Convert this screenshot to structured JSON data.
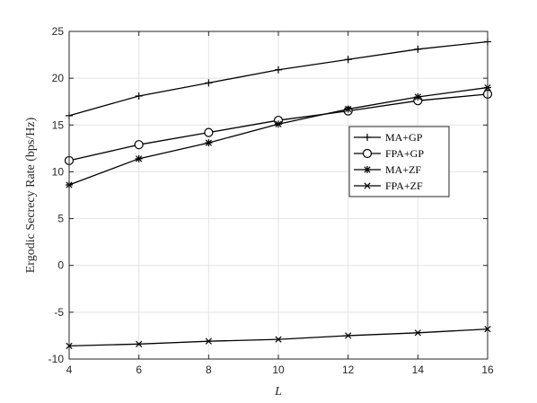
{
  "chart_data": {
    "type": "line",
    "title": "",
    "xlabel": "L",
    "ylabel": "Ergodic Secrecy Rate  (bps/Hz)",
    "xlim": [
      4,
      16
    ],
    "ylim": [
      -10,
      25
    ],
    "xticks": [
      4,
      6,
      8,
      10,
      12,
      14,
      16
    ],
    "yticks": [
      -10,
      -5,
      0,
      5,
      10,
      15,
      20,
      25
    ],
    "grid": true,
    "legend_position": "center-right",
    "x": [
      4,
      6,
      8,
      10,
      12,
      14,
      16
    ],
    "series": [
      {
        "name": "MA+GP",
        "marker": "plus",
        "color": "#000000",
        "values": [
          16.0,
          18.1,
          19.5,
          20.9,
          22.0,
          23.1,
          23.9
        ]
      },
      {
        "name": "FPA+GP",
        "marker": "circle",
        "color": "#000000",
        "values": [
          11.2,
          12.9,
          14.2,
          15.5,
          16.5,
          17.6,
          18.3
        ]
      },
      {
        "name": "MA+ZF",
        "marker": "asterisk",
        "color": "#000000",
        "values": [
          8.6,
          11.4,
          13.1,
          15.1,
          16.7,
          18.0,
          19.0
        ]
      },
      {
        "name": "FPA+ZF",
        "marker": "cross",
        "color": "#000000",
        "values": [
          -8.6,
          -8.4,
          -8.1,
          -7.9,
          -7.5,
          -7.2,
          -6.8
        ]
      }
    ]
  }
}
